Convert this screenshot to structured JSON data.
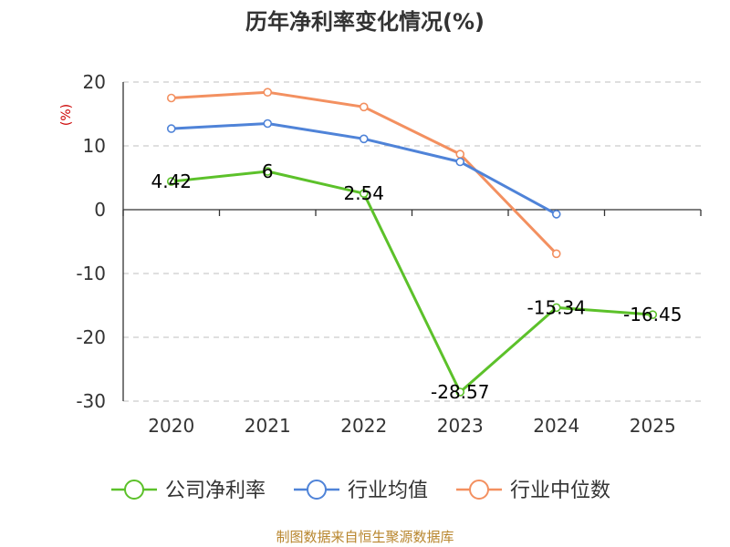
{
  "chart_data": {
    "type": "line",
    "title": "历年净利率变化情况(%)",
    "ylabel": "(%)",
    "xlabel": "",
    "categories": [
      "2020",
      "2021",
      "2022",
      "2023",
      "2024",
      "2025"
    ],
    "ylim": [
      -30,
      20
    ],
    "yticks": [
      20,
      10,
      0,
      -10,
      -20,
      -30
    ],
    "grid": true,
    "legend_position": "bottom",
    "series": [
      {
        "name": "公司净利率",
        "color": "#5cc12a",
        "values": [
          4.42,
          6,
          2.54,
          -28.57,
          -15.34,
          -16.45
        ],
        "labels": [
          "4.42",
          "6",
          "2.54",
          "-28.57",
          "-15.34",
          "-16.45"
        ]
      },
      {
        "name": "行业均值",
        "color": "#4f83d8",
        "values": [
          12.7,
          13.5,
          11.1,
          7.5,
          -0.7,
          null
        ]
      },
      {
        "name": "行业中位数",
        "color": "#f39060",
        "values": [
          17.5,
          18.4,
          16.1,
          8.7,
          -6.9,
          null
        ]
      }
    ]
  },
  "footer": {
    "source": "制图数据来自恒生聚源数据库"
  }
}
